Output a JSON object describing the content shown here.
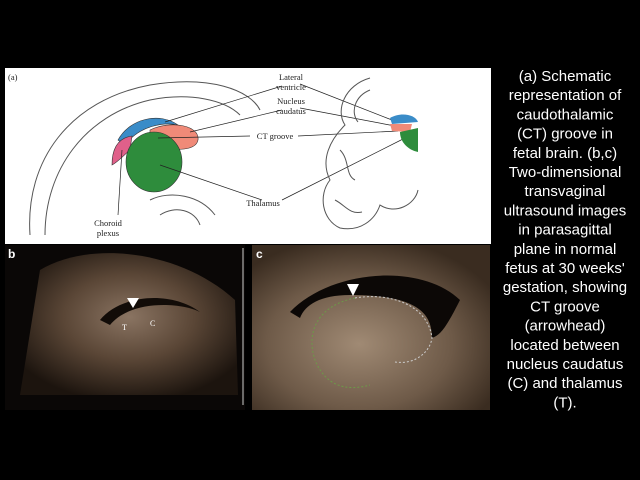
{
  "panel_a": {
    "tag": "(a)",
    "labels": {
      "lateral_ventricle": [
        "Lateral",
        "ventricle"
      ],
      "nucleus_caudatus": [
        "Nucleus",
        "caudatus"
      ],
      "ct_groove": "CT groove",
      "thalamus": "Thalamus",
      "choroid_plexus": [
        "Choroid",
        "plexus"
      ]
    }
  },
  "panel_b": {
    "tag": "b",
    "thalamus_mark": "T",
    "caudatus_mark": "C"
  },
  "panel_c": {
    "tag": "c"
  },
  "caption": [
    "(a) Schematic",
    "representation of",
    "caudothalamic",
    "(CT) groove in",
    "fetal brain. (b,c)",
    "Two-dimensional",
    "transvaginal",
    "ultrasound images",
    "in parasagittal",
    "plane in normal",
    "fetus at 30 weeks'",
    "gestation, showing",
    "CT groove",
    "(arrowhead)",
    "located between",
    "nucleus caudatus",
    "(C) and thalamus",
    "(T)."
  ]
}
